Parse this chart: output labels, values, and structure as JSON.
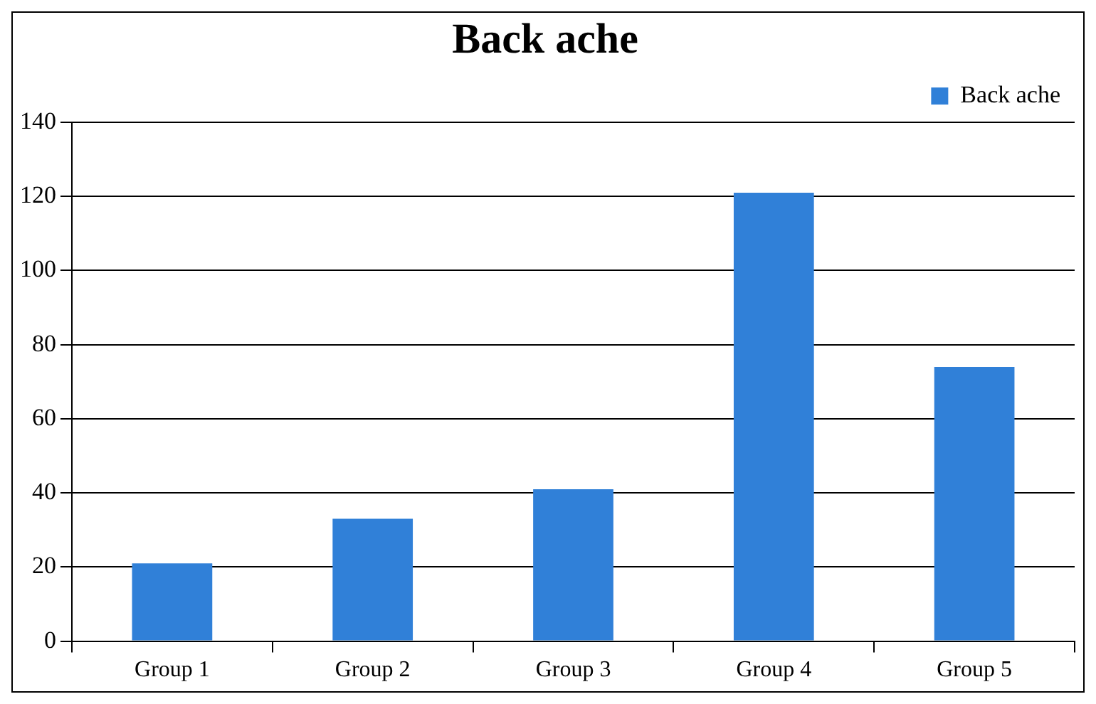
{
  "chart_data": {
    "type": "bar",
    "title": "Back ache",
    "categories": [
      "Group 1",
      "Group 2",
      "Group 3",
      "Group 4",
      "Group 5"
    ],
    "series": [
      {
        "name": "Back ache",
        "color": "#3080d8",
        "values": [
          21,
          33,
          41,
          121,
          74
        ]
      }
    ],
    "ylim": [
      0,
      140
    ],
    "yticks": [
      0,
      20,
      40,
      60,
      80,
      100,
      120,
      140
    ],
    "grid": "y",
    "legend": "top right"
  }
}
